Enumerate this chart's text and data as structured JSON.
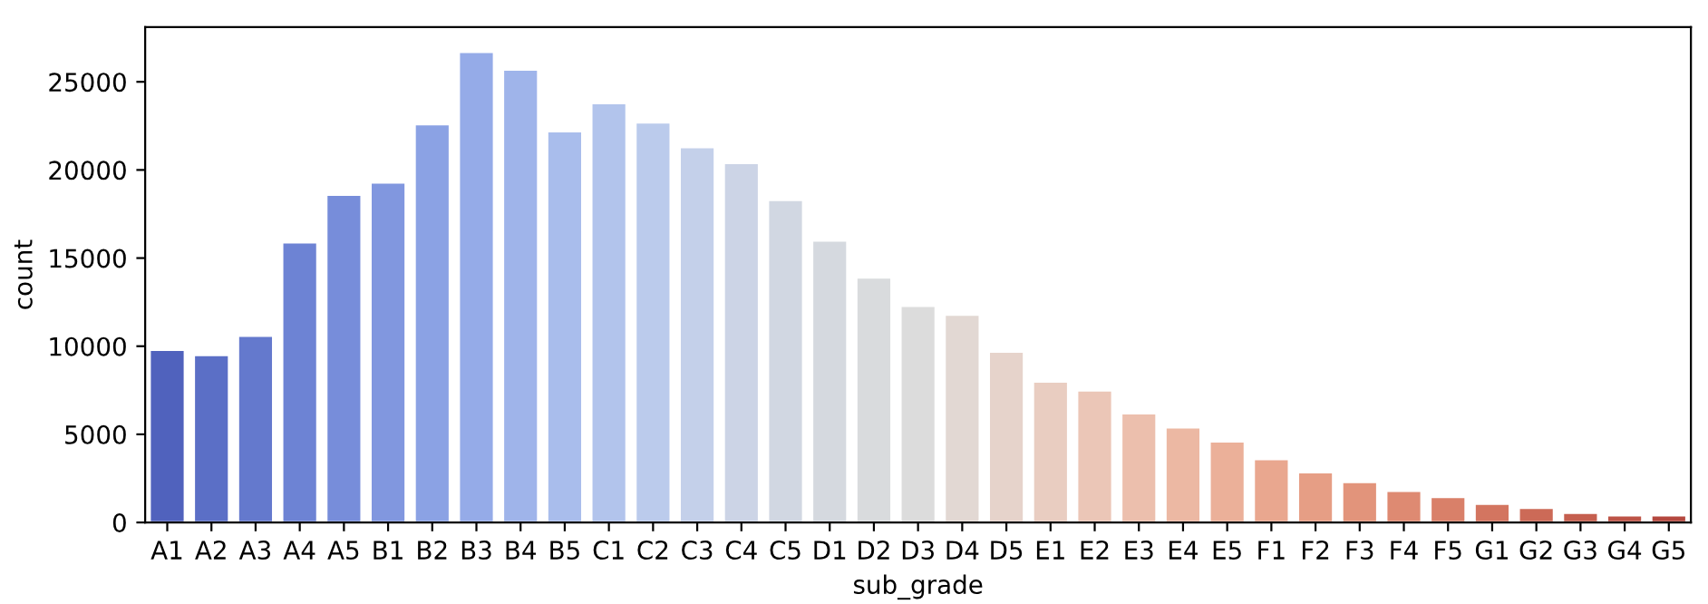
{
  "chart_data": {
    "type": "bar",
    "xlabel": "sub_grade",
    "ylabel": "count",
    "categories": [
      "A1",
      "A2",
      "A3",
      "A4",
      "A5",
      "B1",
      "B2",
      "B3",
      "B4",
      "B5",
      "C1",
      "C2",
      "C3",
      "C4",
      "C5",
      "D1",
      "D2",
      "D3",
      "D4",
      "D5",
      "E1",
      "E2",
      "E3",
      "E4",
      "E5",
      "F1",
      "F2",
      "F3",
      "F4",
      "F5",
      "G1",
      "G2",
      "G3",
      "G4",
      "G5"
    ],
    "values": [
      9800,
      9500,
      10600,
      15900,
      18600,
      19300,
      22600,
      26700,
      25700,
      22200,
      23800,
      22700,
      21300,
      20400,
      18300,
      16000,
      13900,
      12300,
      11800,
      9700,
      8000,
      7500,
      6200,
      5400,
      4600,
      3600,
      2850,
      2300,
      1800,
      1450,
      1070,
      830,
      550,
      410,
      410
    ],
    "colors": [
      "#5062bd",
      "#5b6fc6",
      "#6479cd",
      "#6d83d4",
      "#778dda",
      "#8197df",
      "#8ba2e4",
      "#95abe8",
      "#9fb4ea",
      "#a9bdec",
      "#b2c4ec",
      "#bbcbec",
      "#c4d0ea",
      "#ccd4e6",
      "#d1d7e2",
      "#d5d9df",
      "#d9dbdd",
      "#dcdcdc",
      "#e2d8d3",
      "#e6d3cb",
      "#e9cdc1",
      "#ebc6b7",
      "#ecbfad",
      "#ecb8a3",
      "#ebb099",
      "#e9a78f",
      "#e69e85",
      "#e2947b",
      "#de8a72",
      "#d98069",
      "#d37560",
      "#cc6a57",
      "#c55f4f",
      "#bd5447",
      "#b4483f"
    ],
    "ylim": [
      0,
      28100
    ],
    "yticks": [
      0,
      5000,
      10000,
      15000,
      20000,
      25000
    ],
    "grid": false
  }
}
